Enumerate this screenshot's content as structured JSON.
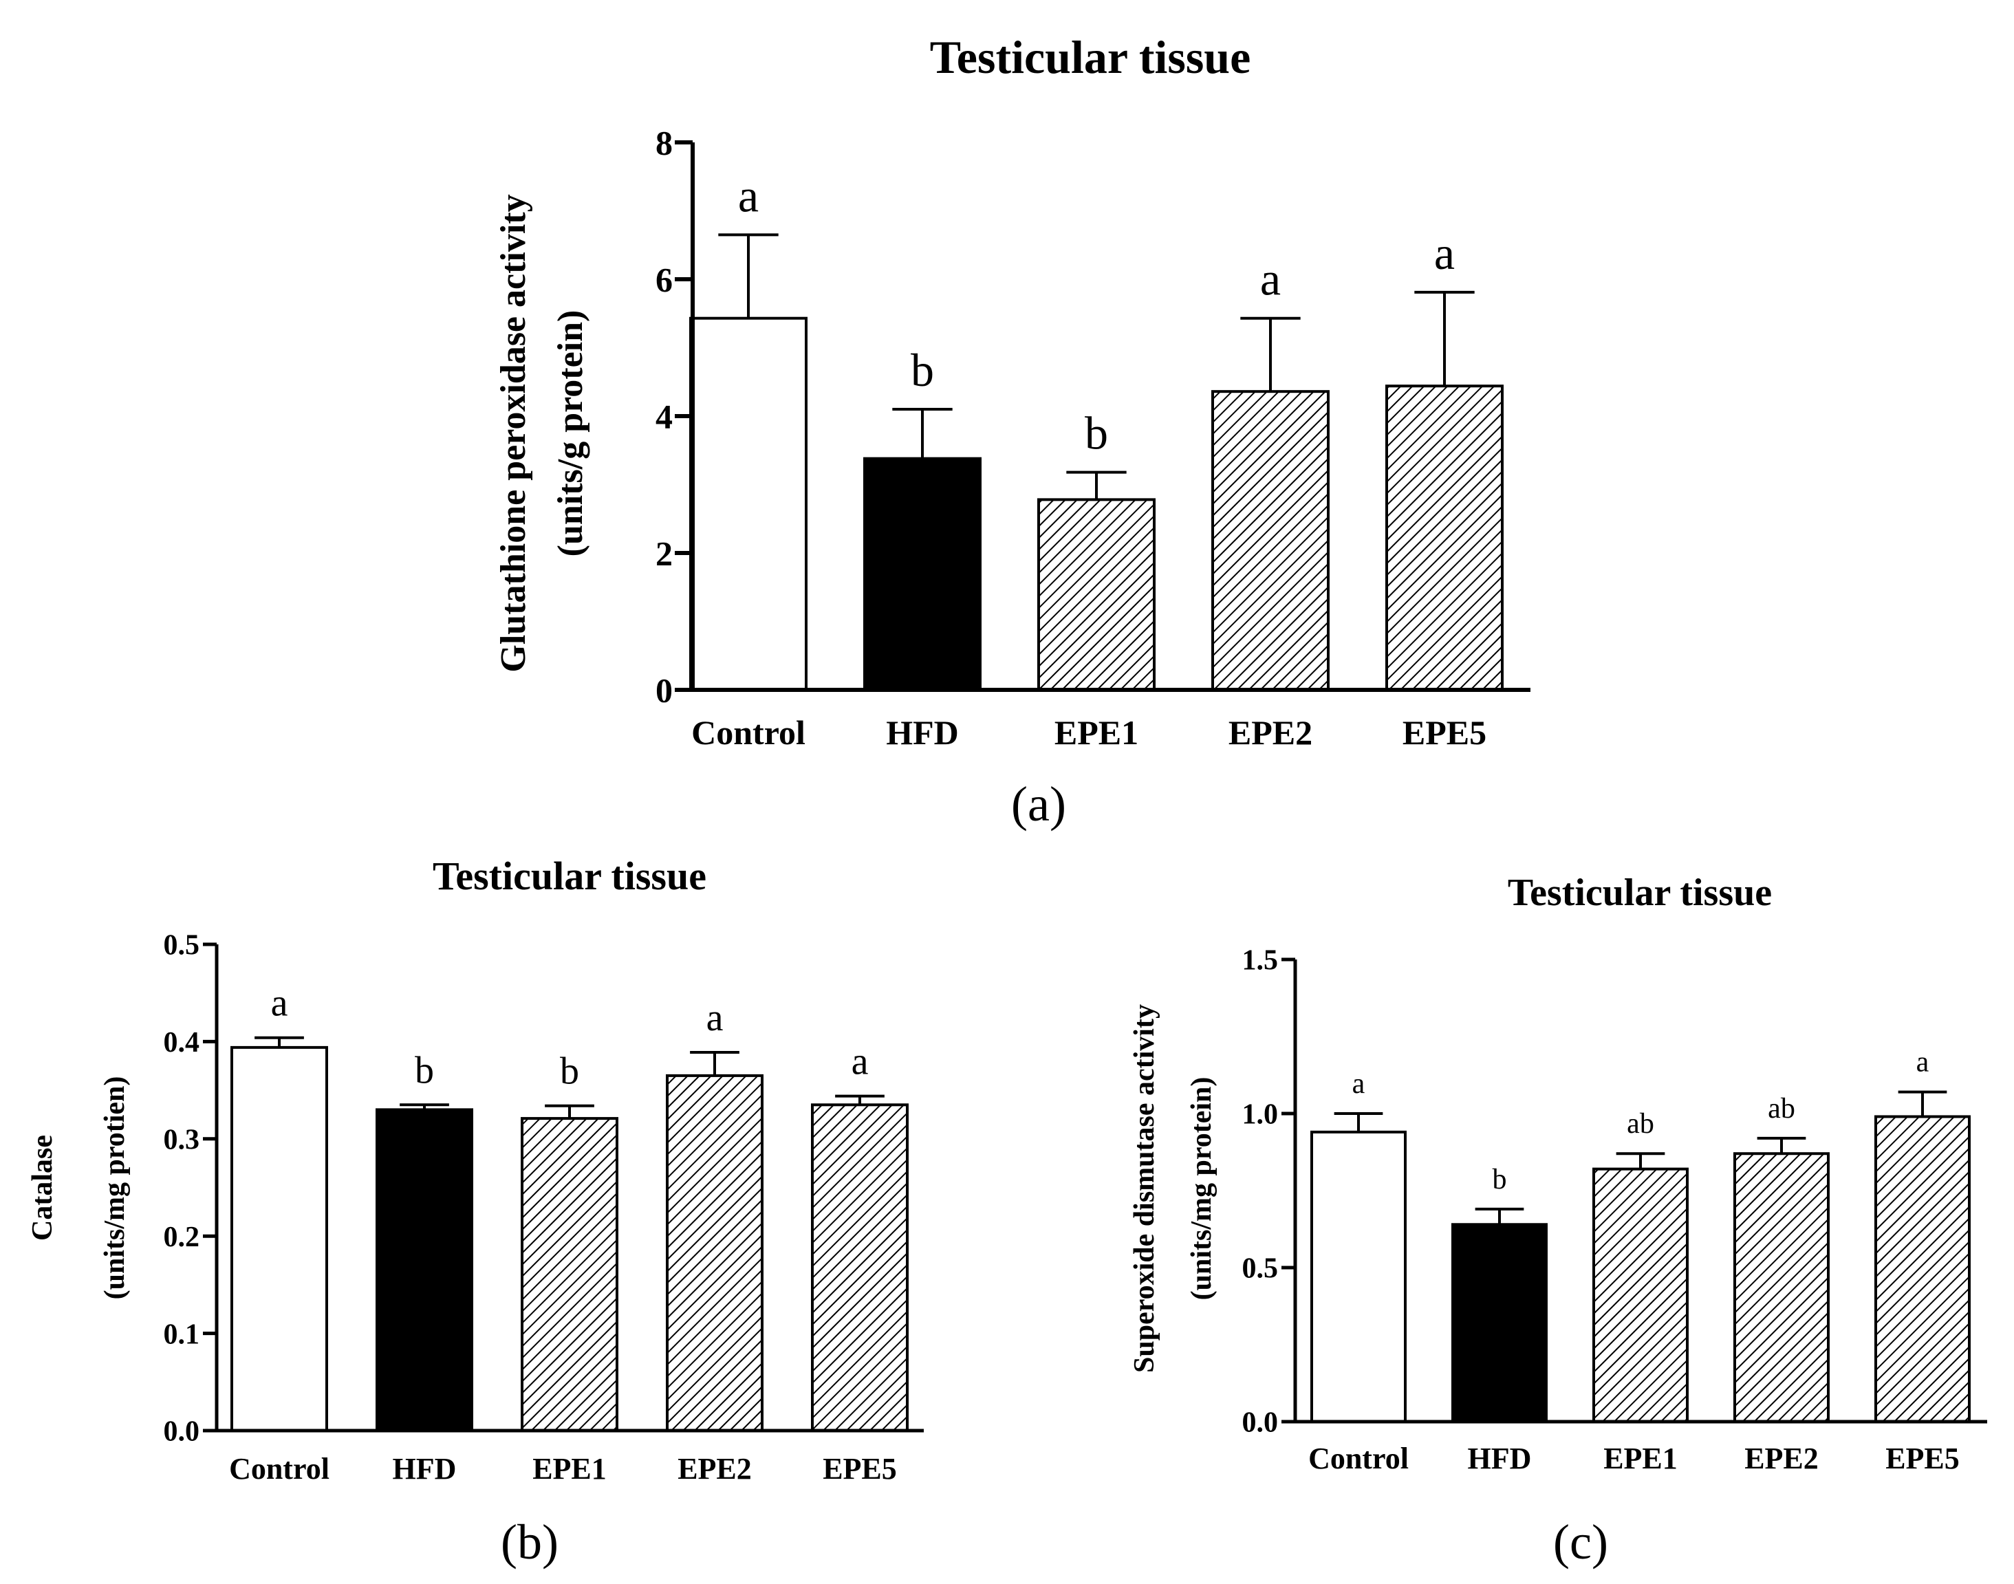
{
  "colors": {
    "ink": "#000000",
    "paper": "#ffffff"
  },
  "chart_data": [
    {
      "type": "bar",
      "panel_label": "(a)",
      "title": "Testicular tissue",
      "ylabel_line1": "Glutathione peroxidase activity",
      "ylabel_line2": "(units/g protein)",
      "xlabel": "",
      "categories": [
        "Control",
        "HFD",
        "EPE1",
        "EPE2",
        "EPE5"
      ],
      "values": [
        5.43,
        3.38,
        2.78,
        4.36,
        4.44
      ],
      "errors": [
        1.22,
        0.72,
        0.4,
        1.07,
        1.37
      ],
      "significance": [
        "a",
        "b",
        "b",
        "a",
        "a"
      ],
      "fills": [
        "white",
        "black",
        "hatch",
        "hatch",
        "hatch"
      ],
      "ylim": [
        0,
        8
      ],
      "yticks": [
        0,
        2,
        4,
        6,
        8
      ],
      "ytick_labels": [
        "0",
        "2",
        "4",
        "6",
        "8"
      ]
    },
    {
      "type": "bar",
      "panel_label": "(b)",
      "title": "Testicular tissue",
      "ylabel_line1": "Catalase",
      "ylabel_line2": "(units/mg protien)",
      "xlabel": "",
      "categories": [
        "Control",
        "HFD",
        "EPE1",
        "EPE2",
        "EPE5"
      ],
      "values": [
        0.394,
        0.33,
        0.321,
        0.365,
        0.335
      ],
      "errors": [
        0.01,
        0.005,
        0.013,
        0.024,
        0.009
      ],
      "significance": [
        "a",
        "b",
        "b",
        "a",
        "a"
      ],
      "fills": [
        "white",
        "black",
        "hatch",
        "hatch",
        "hatch"
      ],
      "ylim": [
        0,
        0.5
      ],
      "yticks": [
        0,
        0.1,
        0.2,
        0.3,
        0.4,
        0.5
      ],
      "ytick_labels": [
        "0.0",
        "0.1",
        "0.2",
        "0.3",
        "0.4",
        "0.5"
      ]
    },
    {
      "type": "bar",
      "panel_label": "(c)",
      "title": "Testicular tissue",
      "ylabel_line1": "Superoxide dismutase activity",
      "ylabel_line2": "(units/mg protein)",
      "xlabel": "",
      "categories": [
        "Control",
        "HFD",
        "EPE1",
        "EPE2",
        "EPE5"
      ],
      "values": [
        0.94,
        0.64,
        0.82,
        0.87,
        0.99
      ],
      "errors": [
        0.06,
        0.05,
        0.05,
        0.05,
        0.08
      ],
      "significance": [
        "a",
        "b",
        "ab",
        "ab",
        "a"
      ],
      "fills": [
        "white",
        "black",
        "hatch",
        "hatch",
        "hatch"
      ],
      "ylim": [
        0,
        1.5
      ],
      "yticks": [
        0,
        0.5,
        1.0,
        1.5
      ],
      "ytick_labels": [
        "0.0",
        "0.5",
        "1.0",
        "1.5"
      ]
    }
  ]
}
